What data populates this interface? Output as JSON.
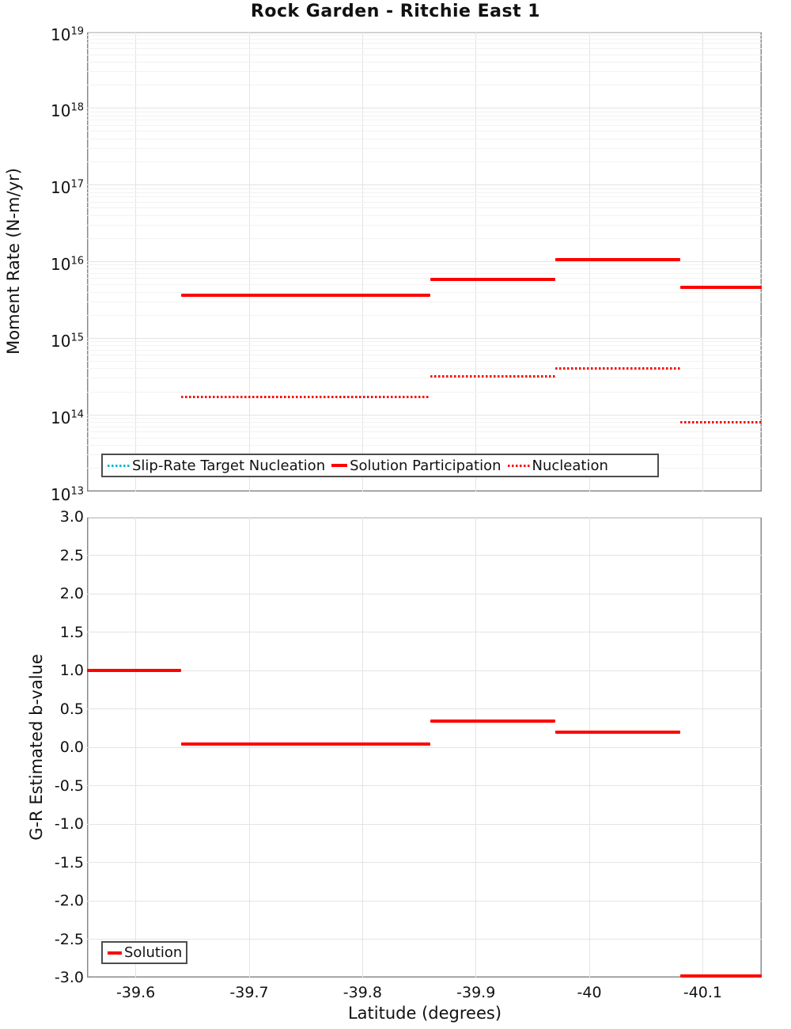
{
  "figure": {
    "title": "Rock Garden - Ritchie East 1"
  },
  "colors": {
    "solution_red": "#ff0000",
    "slip_rate_target_cyan": "#00bcc8",
    "grid_major": "#e4e4e4",
    "grid_minor": "#f2f2f2",
    "spine": "#8a8a8a",
    "legend_border": "#4d4d4d",
    "text": "#111111"
  },
  "chart_data": [
    {
      "type": "line",
      "title": "Rock Garden - Ritchie East 1",
      "ylabel": "Moment Rate (N-m/yr)",
      "xlabel": "",
      "yscale": "log",
      "ylim": [
        10000000000000.0,
        1e+19
      ],
      "y_tick_exponents": [
        19,
        18,
        17,
        16,
        15,
        14,
        13
      ],
      "x_axis_inverted": true,
      "xlim": [
        -39.557,
        -40.152
      ],
      "x_tick_values": [
        -39.6,
        -39.7,
        -39.8,
        -39.9,
        -40,
        -40.1
      ],
      "grid": true,
      "legend_position": "lower-left",
      "legend": [
        {
          "label": "Slip-Rate Target Nucleation",
          "style": "dotted",
          "color": "#00bcc8"
        },
        {
          "label": "Solution Participation",
          "style": "solid",
          "color": "#ff0000"
        },
        {
          "label": "Nucleation",
          "style": "dotted",
          "color": "#ff0000"
        }
      ],
      "series": [
        {
          "name": "Solution Participation",
          "style": "solid",
          "color": "#ff0000",
          "segments": [
            {
              "lat": [
                -39.64,
                -39.86
              ],
              "value": 3600000000000000.0
            },
            {
              "lat": [
                -39.86,
                -39.97
              ],
              "value": 5800000000000000.0
            },
            {
              "lat": [
                -39.97,
                -40.08
              ],
              "value": 1.05e+16
            },
            {
              "lat": [
                -40.08,
                -40.152
              ],
              "value": 4600000000000000.0
            }
          ]
        },
        {
          "name": "Nucleation",
          "style": "dotted",
          "color": "#ff0000",
          "segments": [
            {
              "lat": [
                -39.64,
                -39.86
              ],
              "value": 170000000000000.0
            },
            {
              "lat": [
                -39.86,
                -39.97
              ],
              "value": 320000000000000.0
            },
            {
              "lat": [
                -39.97,
                -40.08
              ],
              "value": 400000000000000.0
            },
            {
              "lat": [
                -40.08,
                -40.152
              ],
              "value": 80000000000000.0
            }
          ]
        },
        {
          "name": "Slip-Rate Target Nucleation",
          "style": "dotted",
          "color": "#00bcc8",
          "visible_in_plot": false,
          "segments": []
        }
      ]
    },
    {
      "type": "line",
      "title": "",
      "ylabel": "G-R Estimated b-value",
      "xlabel": "Latitude (degrees)",
      "yscale": "linear",
      "ylim": [
        -3.0,
        3.0
      ],
      "y_tick_values": [
        3.0,
        2.5,
        2.0,
        1.5,
        1.0,
        0.5,
        0.0,
        -0.5,
        -1.0,
        -1.5,
        -2.0,
        -2.5,
        -3.0
      ],
      "x_axis_inverted": true,
      "xlim": [
        -39.557,
        -40.152
      ],
      "x_tick_values": [
        -39.6,
        -39.7,
        -39.8,
        -39.9,
        -40,
        -40.1
      ],
      "x_tick_labels": [
        "-39.6",
        "-39.7",
        "-39.8",
        "-39.9",
        "-40",
        "-40.1"
      ],
      "grid": true,
      "legend_position": "lower-left",
      "legend": [
        {
          "label": "Solution",
          "style": "solid",
          "color": "#ff0000"
        }
      ],
      "series": [
        {
          "name": "Solution",
          "style": "solid",
          "color": "#ff0000",
          "segments": [
            {
              "lat": [
                -39.557,
                -39.64
              ],
              "value": 1.0
            },
            {
              "lat": [
                -39.64,
                -39.86
              ],
              "value": 0.04
            },
            {
              "lat": [
                -39.86,
                -39.97
              ],
              "value": 0.34
            },
            {
              "lat": [
                -39.97,
                -40.08
              ],
              "value": 0.2
            },
            {
              "lat": [
                -40.08,
                -40.152
              ],
              "value": -3.0
            }
          ]
        }
      ]
    }
  ]
}
